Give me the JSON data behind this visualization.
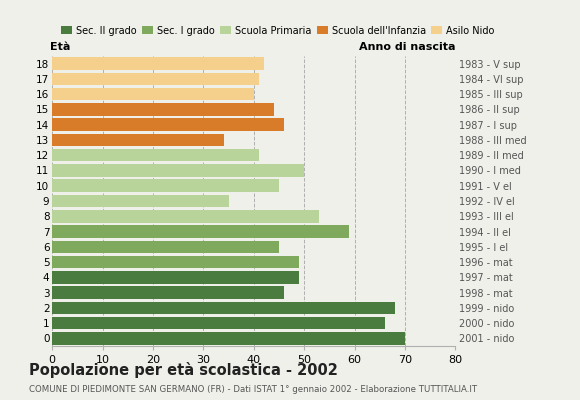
{
  "ages": [
    18,
    17,
    16,
    15,
    14,
    13,
    12,
    11,
    10,
    9,
    8,
    7,
    6,
    5,
    4,
    3,
    2,
    1,
    0
  ],
  "values": [
    70,
    66,
    68,
    46,
    49,
    49,
    45,
    59,
    53,
    35,
    45,
    50,
    41,
    34,
    46,
    44,
    40,
    41,
    42
  ],
  "colors": [
    "#4a7c3f",
    "#4a7c3f",
    "#4a7c3f",
    "#4a7c3f",
    "#4a7c3f",
    "#7faa5e",
    "#7faa5e",
    "#7faa5e",
    "#b8d49a",
    "#b8d49a",
    "#b8d49a",
    "#b8d49a",
    "#b8d49a",
    "#d97c2a",
    "#d97c2a",
    "#d97c2a",
    "#f5d08c",
    "#f5d08c",
    "#f5d08c"
  ],
  "right_labels": [
    "1983 - V sup",
    "1984 - VI sup",
    "1985 - III sup",
    "1986 - II sup",
    "1987 - I sup",
    "1988 - III med",
    "1989 - II med",
    "1990 - I med",
    "1991 - V el",
    "1992 - IV el",
    "1993 - III el",
    "1994 - II el",
    "1995 - I el",
    "1996 - mat",
    "1997 - mat",
    "1998 - mat",
    "1999 - nido",
    "2000 - nido",
    "2001 - nido"
  ],
  "legend_labels": [
    "Sec. II grado",
    "Sec. I grado",
    "Scuola Primaria",
    "Scuola dell'Infanzia",
    "Asilo Nido"
  ],
  "legend_colors": [
    "#4a7c3f",
    "#7faa5e",
    "#b8d49a",
    "#d97c2a",
    "#f5d08c"
  ],
  "title": "Popolazione per età scolastica - 2002",
  "subtitle": "COMUNE DI PIEDIMONTE SAN GERMANO (FR) - Dati ISTAT 1° gennaio 2002 - Elaborazione TUTTITALIA.IT",
  "xlabel_left": "Età",
  "xlabel_right": "Anno di nascita",
  "xlim": [
    0,
    80
  ],
  "xticks": [
    0,
    10,
    20,
    30,
    40,
    50,
    60,
    70,
    80
  ],
  "bg_color": "#f0f0eb"
}
